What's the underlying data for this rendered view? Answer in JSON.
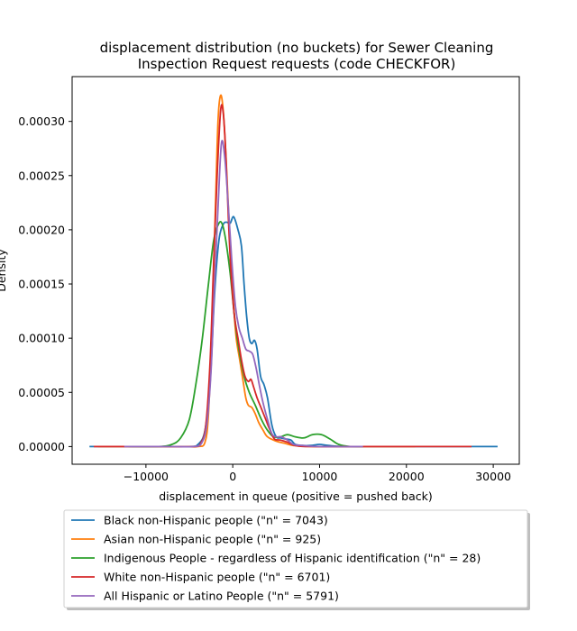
{
  "chart_data": {
    "type": "line",
    "title": [
      "displacement distribution (no buckets)  for Sewer Cleaning",
      "Inspection Request requests (code CHECKFOR)"
    ],
    "xlabel": "displacement in queue (positive = pushed back)",
    "ylabel": "Density",
    "xlim": [
      -18500,
      33000
    ],
    "ylim": [
      -1.63e-05,
      0.0003413
    ],
    "x_ticks": [
      -10000,
      0,
      10000,
      20000,
      30000
    ],
    "x_tick_labels": [
      "−10000",
      "0",
      "10000",
      "20000",
      "30000"
    ],
    "y_ticks": [
      0,
      5e-05,
      0.0001,
      0.00015,
      0.0002,
      0.00025,
      0.0003
    ],
    "y_tick_labels": [
      "0.00000",
      "0.00005",
      "0.00010",
      "0.00015",
      "0.00020",
      "0.00025",
      "0.00030"
    ],
    "grid": false,
    "legend_position": "below",
    "series": [
      {
        "name": "Black non-Hispanic people (\"n\" = 7043)",
        "color": "#1f77b4",
        "points": [
          [
            -16500,
            0
          ],
          [
            -8000,
            0
          ],
          [
            -5000,
            0
          ],
          [
            -4000,
            2e-06
          ],
          [
            -3200,
            1.5e-05
          ],
          [
            -2600,
            6e-05
          ],
          [
            -2100,
            0.00014
          ],
          [
            -1600,
            0.00019
          ],
          [
            -1100,
            0.000205
          ],
          [
            -700,
            0.000207
          ],
          [
            -300,
            0.000206
          ],
          [
            100,
            0.000212
          ],
          [
            600,
            0.0002
          ],
          [
            1000,
            0.000185
          ],
          [
            1300,
            0.00015
          ],
          [
            1600,
            0.00012
          ],
          [
            1900,
            0.0001
          ],
          [
            2200,
            9.5e-05
          ],
          [
            2500,
            9.8e-05
          ],
          [
            2800,
            9e-05
          ],
          [
            3200,
            6.5e-05
          ],
          [
            3600,
            5.7e-05
          ],
          [
            4000,
            4.5e-05
          ],
          [
            4500,
            2e-05
          ],
          [
            5000,
            9e-06
          ],
          [
            5500,
            8e-06
          ],
          [
            6100,
            7e-06
          ],
          [
            6700,
            6e-06
          ],
          [
            7200,
            2e-06
          ],
          [
            8000,
            1e-06
          ],
          [
            9000,
            1e-06
          ],
          [
            10000,
            2e-06
          ],
          [
            11000,
            1e-06
          ],
          [
            13000,
            0
          ],
          [
            20000,
            0
          ],
          [
            30500,
            0
          ]
        ]
      },
      {
        "name": "Asian non-Hispanic people (\"n\" = 925)",
        "color": "#ff7f0e",
        "points": [
          [
            -15500,
            0
          ],
          [
            -6000,
            0
          ],
          [
            -4000,
            0
          ],
          [
            -3200,
            4e-06
          ],
          [
            -2800,
            3e-05
          ],
          [
            -2400,
            0.00011
          ],
          [
            -2000,
            0.00022
          ],
          [
            -1700,
            0.0003
          ],
          [
            -1400,
            0.000324
          ],
          [
            -1100,
            0.00031
          ],
          [
            -800,
            0.00027
          ],
          [
            -500,
            0.00022
          ],
          [
            -200,
            0.00017
          ],
          [
            100,
            0.00013
          ],
          [
            400,
            0.0001
          ],
          [
            800,
            8e-05
          ],
          [
            1200,
            6e-05
          ],
          [
            1500,
            4.5e-05
          ],
          [
            1800,
            3.8e-05
          ],
          [
            2200,
            3.6e-05
          ],
          [
            2600,
            3e-05
          ],
          [
            3000,
            2.2e-05
          ],
          [
            3500,
            1.5e-05
          ],
          [
            4000,
            9e-06
          ],
          [
            5000,
            5e-06
          ],
          [
            6000,
            3e-06
          ],
          [
            7000,
            1e-06
          ],
          [
            9000,
            0
          ],
          [
            15000,
            0
          ],
          [
            21000,
            0
          ]
        ]
      },
      {
        "name": "Indigenous People - regardless of Hispanic identification (\"n\" = 28)",
        "color": "#2ca02c",
        "points": [
          [
            -12000,
            0
          ],
          [
            -8500,
            0
          ],
          [
            -7000,
            2e-06
          ],
          [
            -6000,
            8e-06
          ],
          [
            -5000,
            2.5e-05
          ],
          [
            -4200,
            6e-05
          ],
          [
            -3500,
            0.0001
          ],
          [
            -2800,
            0.00015
          ],
          [
            -2200,
            0.00019
          ],
          [
            -1600,
            0.000206
          ],
          [
            -1200,
            0.000205
          ],
          [
            -800,
            0.00019
          ],
          [
            -300,
            0.00016
          ],
          [
            200,
            0.00012
          ],
          [
            700,
            9e-05
          ],
          [
            1300,
            6.5e-05
          ],
          [
            1900,
            5e-05
          ],
          [
            2600,
            3.8e-05
          ],
          [
            3300,
            2.5e-05
          ],
          [
            4000,
            1.5e-05
          ],
          [
            4700,
            9e-06
          ],
          [
            5500,
            9e-06
          ],
          [
            6300,
            1.1e-05
          ],
          [
            7200,
            9e-06
          ],
          [
            8200,
            8e-06
          ],
          [
            9200,
            1.1e-05
          ],
          [
            10200,
            1.1e-05
          ],
          [
            11200,
            7e-06
          ],
          [
            12200,
            2e-06
          ],
          [
            13500,
            0
          ],
          [
            15000,
            0
          ]
        ]
      },
      {
        "name": "White non-Hispanic people (\"n\" = 6701)",
        "color": "#d62728",
        "points": [
          [
            -16000,
            0
          ],
          [
            -8000,
            0
          ],
          [
            -4500,
            0
          ],
          [
            -3700,
            3e-06
          ],
          [
            -3100,
            2e-05
          ],
          [
            -2600,
            8e-05
          ],
          [
            -2200,
            0.00017
          ],
          [
            -1800,
            0.00025
          ],
          [
            -1400,
            0.00031
          ],
          [
            -1100,
            0.000308
          ],
          [
            -800,
            0.00027
          ],
          [
            -500,
            0.00021
          ],
          [
            -200,
            0.00016
          ],
          [
            200,
            0.00012
          ],
          [
            600,
            0.0001
          ],
          [
            1000,
            8e-05
          ],
          [
            1400,
            6.5e-05
          ],
          [
            1800,
            6e-05
          ],
          [
            2100,
            6.2e-05
          ],
          [
            2400,
            5.5e-05
          ],
          [
            2800,
            4.5e-05
          ],
          [
            3300,
            3.5e-05
          ],
          [
            3800,
            2.5e-05
          ],
          [
            4300,
            1.5e-05
          ],
          [
            4800,
            7e-06
          ],
          [
            5500,
            6e-06
          ],
          [
            6300,
            4e-06
          ],
          [
            7200,
            1e-06
          ],
          [
            9000,
            0
          ],
          [
            15000,
            0
          ],
          [
            27500,
            0
          ]
        ]
      },
      {
        "name": "All Hispanic or Latino People (\"n\" = 5791)",
        "color": "#9467bd",
        "points": [
          [
            -12500,
            0
          ],
          [
            -7000,
            0
          ],
          [
            -4500,
            0
          ],
          [
            -3600,
            3e-06
          ],
          [
            -3000,
            2e-05
          ],
          [
            -2500,
            7e-05
          ],
          [
            -2100,
            0.00015
          ],
          [
            -1700,
            0.00022
          ],
          [
            -1300,
            0.00028
          ],
          [
            -900,
            0.000265
          ],
          [
            -500,
            0.00022
          ],
          [
            -100,
            0.00017
          ],
          [
            300,
            0.00013
          ],
          [
            700,
            0.00011
          ],
          [
            1100,
            0.0001
          ],
          [
            1500,
            9e-05
          ],
          [
            1900,
            8.8e-05
          ],
          [
            2300,
            8.5e-05
          ],
          [
            2700,
            7.2e-05
          ],
          [
            3100,
            5.5e-05
          ],
          [
            3500,
            4e-05
          ],
          [
            4000,
            2.5e-05
          ],
          [
            4500,
            1.2e-05
          ],
          [
            5000,
            9e-06
          ],
          [
            5600,
            9e-06
          ],
          [
            6300,
            6e-06
          ],
          [
            7000,
            2e-06
          ],
          [
            8000,
            1e-06
          ],
          [
            10000,
            0
          ],
          [
            15000,
            0
          ]
        ]
      }
    ]
  }
}
